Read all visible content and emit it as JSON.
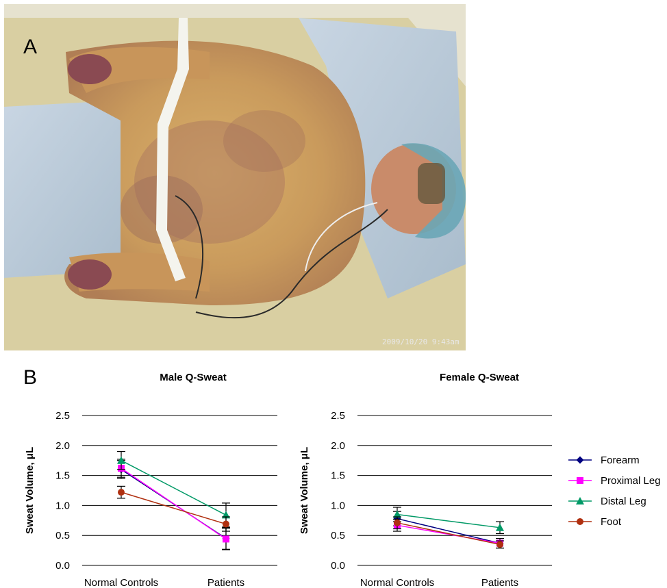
{
  "panels": {
    "a_label": "A",
    "b_label": "B"
  },
  "photo": {
    "description_icon": "patient-photo-icon",
    "timestamp": "2009/10/20  9:43am"
  },
  "legend": [
    {
      "name": "Forearm",
      "color": "#000080",
      "marker": "diamond"
    },
    {
      "name": "Proximal Leg",
      "color": "#FF00FF",
      "marker": "square"
    },
    {
      "name": "Distal Leg",
      "color": "#009966",
      "marker": "triangle"
    },
    {
      "name": "Foot",
      "color": "#B03010",
      "marker": "circle"
    }
  ],
  "chart_data": [
    {
      "type": "line",
      "title": "Male Q-Sweat",
      "xlabel": "",
      "ylabel": "Sweat Volume, μL",
      "categories": [
        "Normal Controls",
        "Patients"
      ],
      "ylim": [
        0,
        2.5
      ],
      "yticks": [
        "0.0",
        "0.5",
        "1.0",
        "1.5",
        "2.0",
        "2.5"
      ],
      "grid": true,
      "series": [
        {
          "name": "Forearm",
          "values": [
            1.6,
            0.45
          ],
          "err": [
            0.15,
            0.18
          ]
        },
        {
          "name": "Proximal Leg",
          "values": [
            1.62,
            0.44
          ],
          "err": [
            0.15,
            0.18
          ]
        },
        {
          "name": "Distal Leg",
          "values": [
            1.75,
            0.84
          ],
          "err": [
            0.15,
            0.2
          ]
        },
        {
          "name": "Foot",
          "values": [
            1.22,
            0.69
          ],
          "err": [
            0.1,
            0.12
          ]
        }
      ]
    },
    {
      "type": "line",
      "title": "Female Q-Sweat",
      "xlabel": "",
      "ylabel": "Sweat Volume, μL",
      "categories": [
        "Normal Controls",
        "Patients"
      ],
      "ylim": [
        0,
        2.5
      ],
      "yticks": [
        "0.0",
        "0.5",
        "1.0",
        "1.5",
        "2.0",
        "2.5"
      ],
      "grid": true,
      "series": [
        {
          "name": "Forearm",
          "values": [
            0.78,
            0.37
          ],
          "err": [
            0.12,
            0.08
          ]
        },
        {
          "name": "Proximal Leg",
          "values": [
            0.67,
            0.37
          ],
          "err": [
            0.1,
            0.08
          ]
        },
        {
          "name": "Distal Leg",
          "values": [
            0.85,
            0.63
          ],
          "err": [
            0.12,
            0.1
          ]
        },
        {
          "name": "Foot",
          "values": [
            0.71,
            0.35
          ],
          "err": [
            0.1,
            0.06
          ]
        }
      ]
    }
  ]
}
